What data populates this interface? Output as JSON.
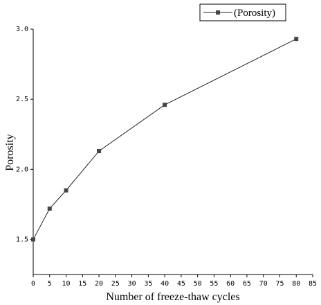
{
  "chart_data": {
    "type": "line",
    "xlabel": "Number of freeze-thaw cycles",
    "ylabel": "Porosity",
    "xlim": [
      0,
      85
    ],
    "ylim": [
      1.25,
      3.0
    ],
    "xticks": [
      0,
      5,
      10,
      15,
      20,
      25,
      30,
      35,
      40,
      45,
      50,
      55,
      60,
      65,
      70,
      75,
      80,
      85
    ],
    "yticks": [
      1.5,
      2.0,
      2.5,
      3.0
    ],
    "ytick_labels": [
      "1.5",
      "2.0",
      "2.5",
      "3.0"
    ],
    "grid": false,
    "legend": {
      "position": "top-right",
      "entries": [
        "(Porosity)"
      ]
    },
    "series": [
      {
        "name": "(Porosity)",
        "marker": "square",
        "x": [
          0,
          5,
          10,
          20,
          40,
          80
        ],
        "y": [
          1.5,
          1.72,
          1.85,
          2.13,
          2.46,
          2.93
        ]
      }
    ]
  }
}
